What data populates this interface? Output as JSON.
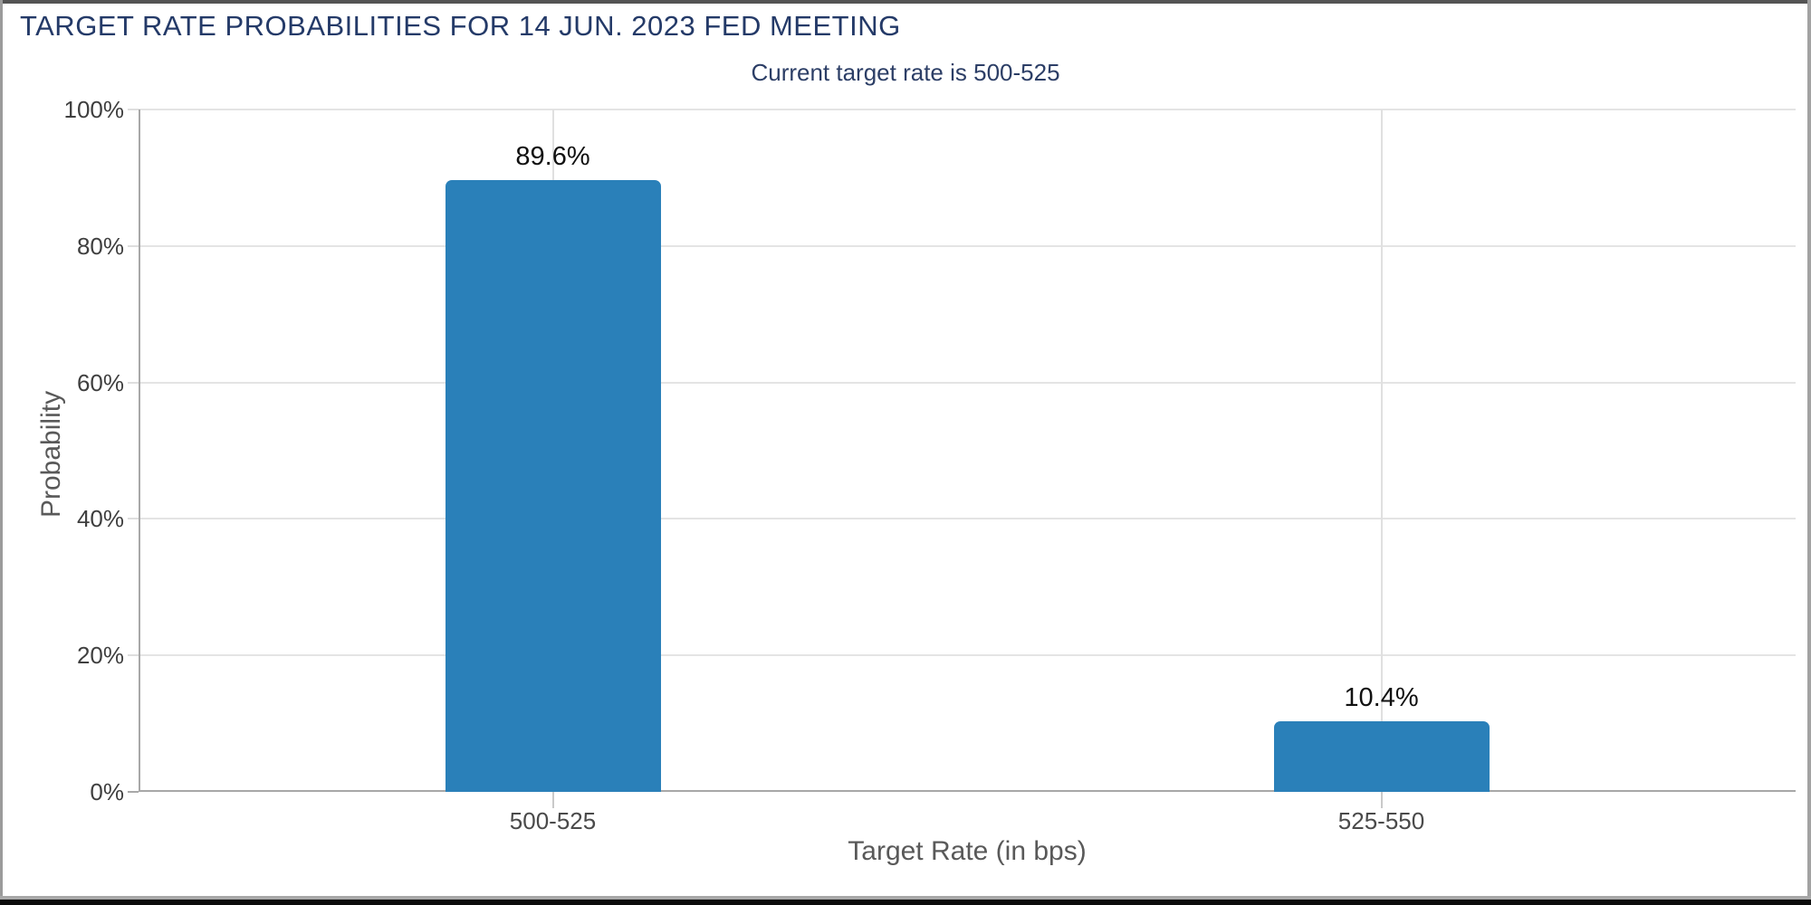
{
  "chart_data": {
    "type": "bar",
    "title": "TARGET RATE PROBABILITIES FOR 14 JUN. 2023 FED MEETING",
    "subtitle": "Current target rate is 500-525",
    "categories": [
      "500-525",
      "525-550"
    ],
    "values": [
      89.6,
      10.4
    ],
    "value_labels": [
      "89.6%",
      "10.4%"
    ],
    "xlabel": "Target Rate (in bps)",
    "ylabel": "Probability",
    "ylim": [
      0,
      100
    ],
    "yticks": [
      0,
      20,
      40,
      60,
      80,
      100
    ],
    "ytick_labels": [
      "0%",
      "20%",
      "40%",
      "60%",
      "80%",
      "100%"
    ],
    "grid": true,
    "legend_position": "none",
    "bar_color": "#2a80b9"
  },
  "watermark": {
    "icon": "quikstrike-q-logo"
  },
  "colors": {
    "title_navy": "#243a68",
    "bar_blue": "#2a80b9",
    "gridline": "#e4e4e4",
    "axis_line": "#a8a8a8",
    "tick_label_gray": "#3f3f3f",
    "axis_title_gray": "#595959"
  }
}
